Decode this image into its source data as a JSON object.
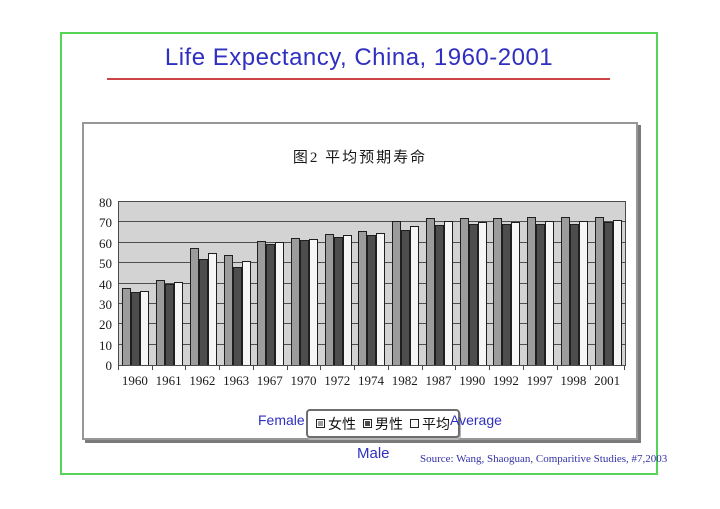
{
  "slide": {
    "title": "Life Expectancy, China, 1960-2001",
    "labels": {
      "female": "Female",
      "male": "Male",
      "average": "Average"
    },
    "source": "Source: Wang, Shaoguan, Comparitive Studies, #7,2003",
    "colors": {
      "title_blue": "#3030c0",
      "underline_red": "#cc4444",
      "frame_green": "#55d455",
      "source_navy": "#3333a6",
      "plot_background": "#d3d3d3",
      "gridline": "#4f4f4f"
    }
  },
  "chart_data": {
    "type": "bar",
    "title": "图2  平均预期寿命",
    "categories": [
      "1960",
      "1961",
      "1962",
      "1963",
      "1967",
      "1970",
      "1972",
      "1974",
      "1982",
      "1987",
      "1990",
      "1992",
      "1997",
      "1998",
      "2001"
    ],
    "series": [
      {
        "name": "女性",
        "color": "#9c9c9c",
        "values": [
          38,
          41.5,
          57.5,
          54,
          61,
          62.5,
          64.5,
          66,
          70.5,
          72,
          72,
          72,
          72.5,
          72.5,
          72.5
        ]
      },
      {
        "name": "男性",
        "color": "#4d4d4d",
        "values": [
          36,
          40,
          52,
          48,
          59.5,
          61.5,
          63,
          64,
          66.5,
          68.5,
          69,
          69,
          69,
          69,
          70
        ]
      },
      {
        "name": "平均",
        "color": "#f6f6f6",
        "values": [
          36.5,
          40.5,
          55,
          51,
          60.5,
          62,
          64,
          65,
          68,
          70.5,
          70,
          70,
          70.5,
          70.5,
          71
        ]
      }
    ],
    "xlabel": "",
    "ylabel": "",
    "ylim": [
      0,
      80
    ],
    "ytick_step": 10,
    "grid": true,
    "legend_position": "bottom"
  }
}
